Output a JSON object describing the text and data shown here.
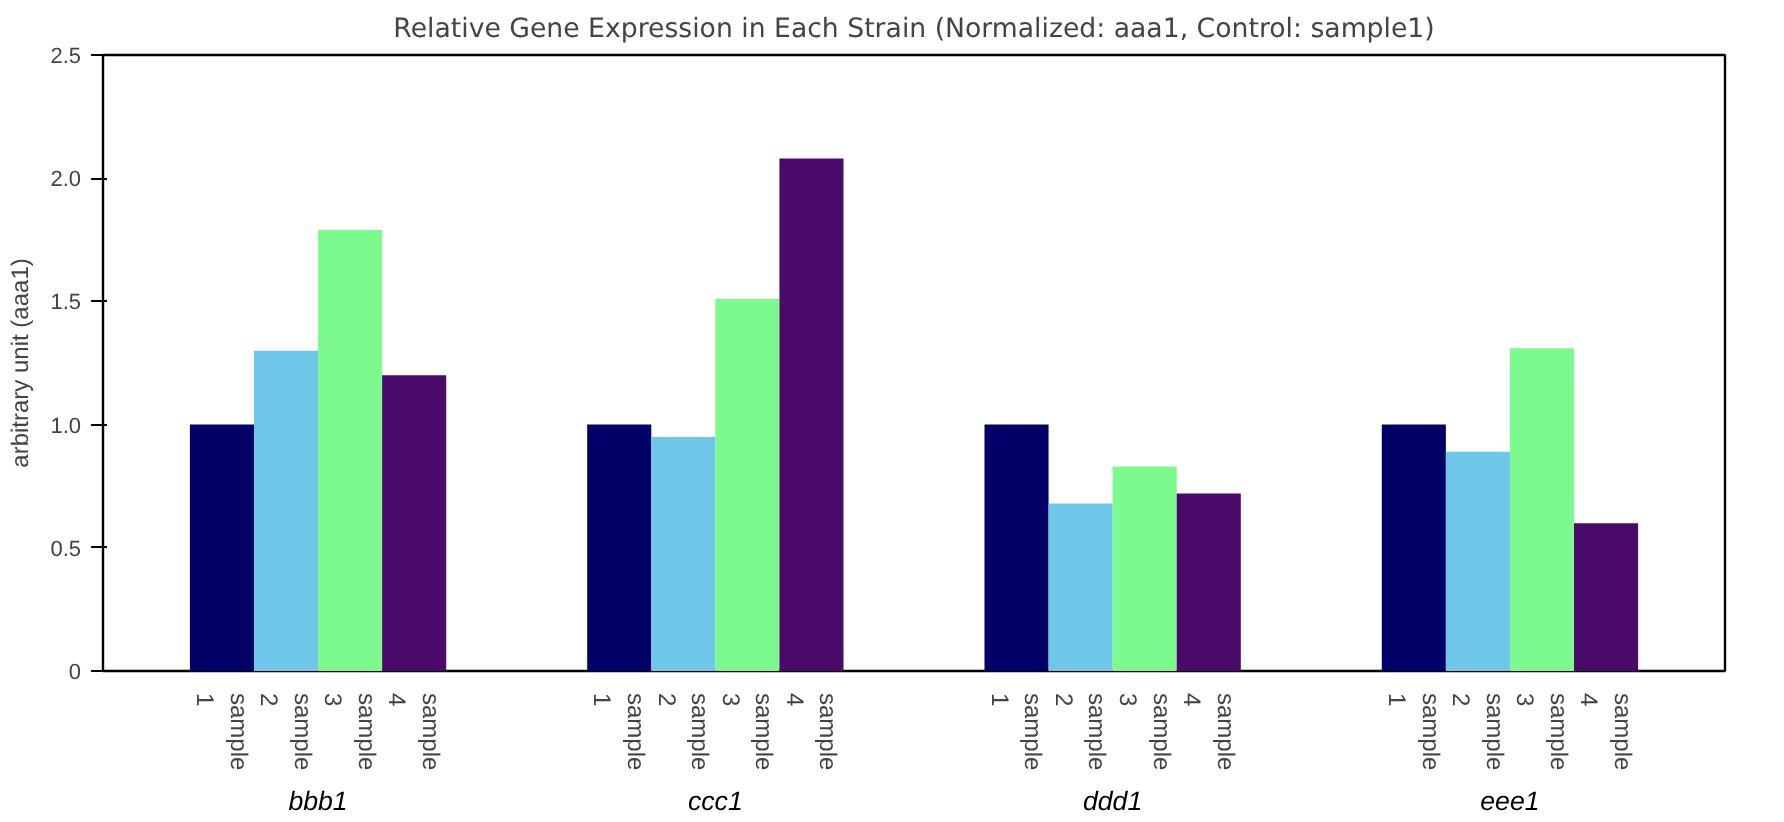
{
  "chart_data": {
    "type": "bar",
    "title": "Relative Gene Expression in Each Strain (Normalized: aaa1, Control: sample1)",
    "ylabel": "arbitrary unit (aaa1)",
    "categories": [
      "bbb1",
      "ccc1",
      "ddd1",
      "eee1"
    ],
    "series": [
      {
        "name": "sample 1",
        "color": "#000066",
        "values": [
          1.0,
          1.0,
          1.0,
          1.0
        ]
      },
      {
        "name": "sample 2",
        "color": "#6ec6e8",
        "values": [
          1.3,
          0.95,
          0.68,
          0.89
        ]
      },
      {
        "name": "sample 3",
        "color": "#7dfa8e",
        "values": [
          1.79,
          1.51,
          0.83,
          1.31
        ]
      },
      {
        "name": "sample 4",
        "color": "#4a0a6a",
        "values": [
          1.2,
          2.08,
          0.72,
          0.6
        ]
      }
    ],
    "ylim": [
      0,
      2.5
    ],
    "yticks": [
      0,
      {
        "value": 0.5,
        "label": "0.5"
      },
      {
        "value": 1.0,
        "label": "1.0"
      },
      {
        "value": 1.5,
        "label": "1.5"
      },
      {
        "value": 2.0,
        "label": "2.0"
      },
      {
        "value": 2.5,
        "label": "2.5"
      }
    ],
    "grid": false
  }
}
